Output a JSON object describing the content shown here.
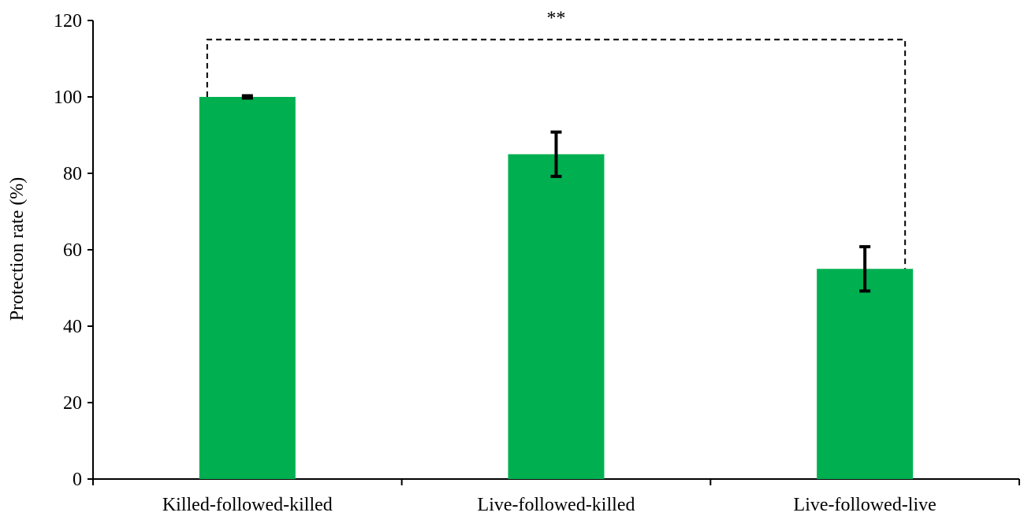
{
  "chart_data": {
    "type": "bar",
    "categories": [
      "Killed-followed-killed",
      "Live-followed-killed",
      "Live-followed-live"
    ],
    "values": [
      100,
      85,
      55
    ],
    "errors": [
      0.3,
      5.8,
      5.8
    ],
    "ylabel": "Protection rate (%)",
    "ylim": [
      0,
      120
    ],
    "yticks": [
      "0",
      "20",
      "40",
      "60",
      "80",
      "100",
      "120"
    ],
    "bar_color": "#00B050",
    "grid": false,
    "legend": "none",
    "annotation": {
      "text": "**",
      "from_category": 0,
      "to_category": 2,
      "level": 115
    }
  }
}
